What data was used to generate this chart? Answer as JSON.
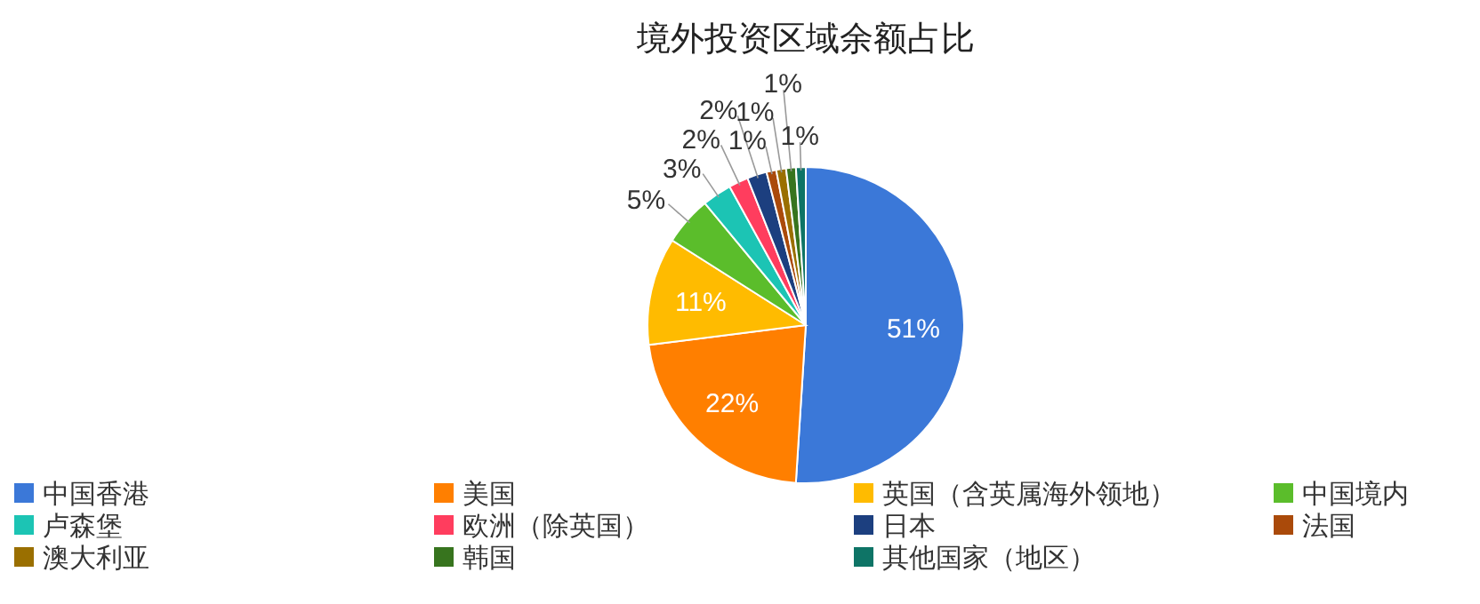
{
  "chart_data": {
    "type": "pie",
    "title": "境外投资区域余额占比",
    "value_labels": [
      "51%",
      "22%",
      "11%",
      "5%",
      "3%",
      "2%",
      "2%",
      "1%",
      "1%",
      "1%",
      "1%"
    ],
    "legend": "bottom",
    "categories": [
      "中国香港",
      "美国",
      "英国（含英属海外领地）",
      "中国境内",
      "卢森堡",
      "欧洲（除英国）",
      "日本",
      "法国",
      "澳大利亚",
      "韩国",
      "其他国家（地区）"
    ],
    "values": [
      51,
      22,
      11,
      5,
      3,
      2,
      2,
      1,
      1,
      1,
      1
    ],
    "colors": [
      "#3b78d8",
      "#ff7f00",
      "#ffbb00",
      "#5bbd2b",
      "#1cc4b4",
      "#ff3d5e",
      "#1c3f7f",
      "#aa4a0a",
      "#9a6f00",
      "#37741e",
      "#0e7466"
    ]
  }
}
